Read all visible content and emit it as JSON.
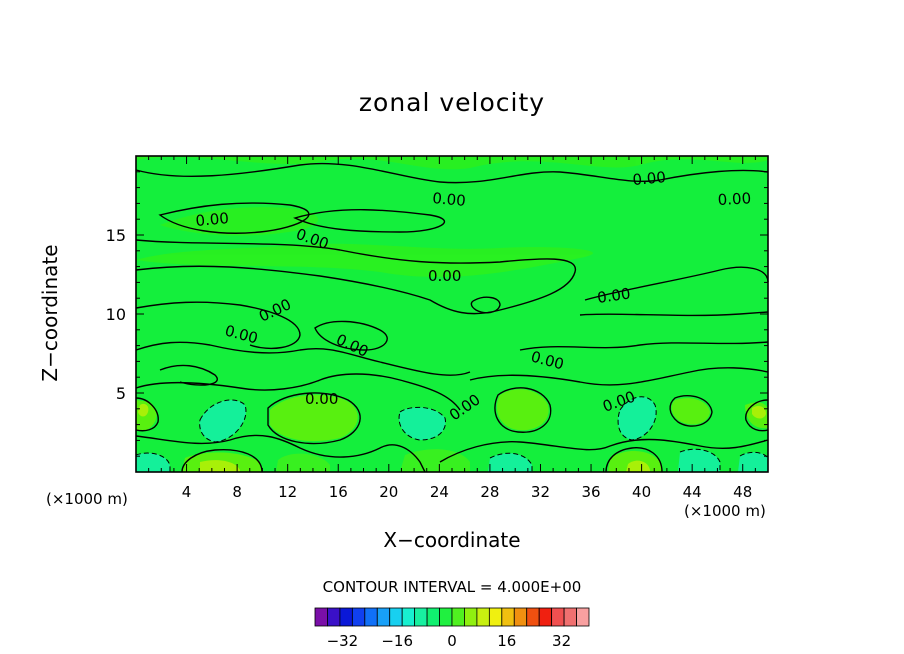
{
  "chart_data": {
    "type": "heatmap",
    "title": "zonal velocity",
    "xlabel": "X−coordinate",
    "ylabel": "Z−coordinate",
    "x_units": "(×1000 m)",
    "y_units": "(×1000 m)",
    "xlim": [
      0,
      50
    ],
    "ylim": [
      0,
      20
    ],
    "x_ticks": [
      4,
      8,
      12,
      16,
      20,
      24,
      28,
      32,
      36,
      40,
      44,
      48
    ],
    "y_ticks": [
      5,
      10,
      15
    ],
    "contour_interval_text": "CONTOUR INTERVAL = 4.000E+00",
    "contour_labels": [
      "0.00"
    ],
    "colorbar": {
      "tick_labels": [
        "−32",
        "−16",
        "0",
        "16",
        "32"
      ],
      "tick_values": [
        -32,
        -16,
        0,
        16,
        32
      ],
      "range": [
        -40,
        40
      ],
      "colors": [
        "#7a0fa8",
        "#3a10c8",
        "#0a18d8",
        "#1040f0",
        "#1070f8",
        "#18a0f8",
        "#18d0f0",
        "#18f0d0",
        "#18f0a0",
        "#10f070",
        "#20f040",
        "#50f020",
        "#90f010",
        "#c8f010",
        "#f0f010",
        "#f0c010",
        "#f09010",
        "#f05010",
        "#f02010",
        "#f05050",
        "#f07070",
        "#f8a0a0"
      ]
    },
    "field_summary": "mostly near 0 (green) with positive lobes near the bottom boundary and weak negative lobes (dashed)"
  }
}
